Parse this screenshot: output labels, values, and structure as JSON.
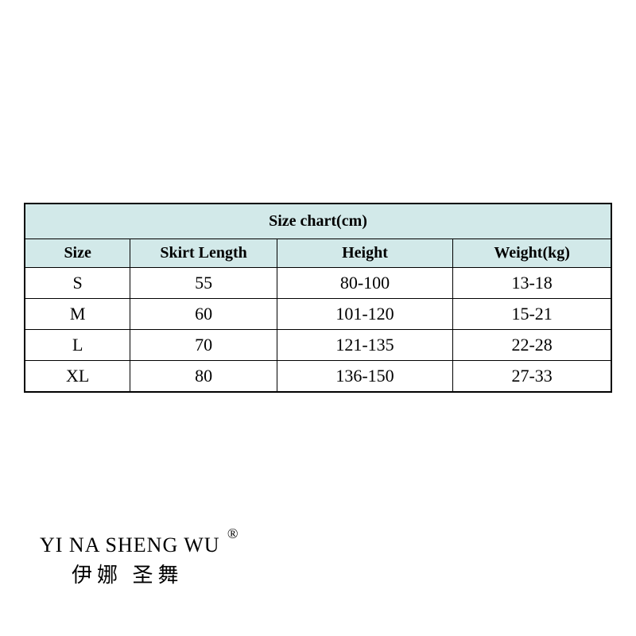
{
  "table": {
    "title": "Size chart(cm)",
    "columns": [
      "Size",
      "Skirt Length",
      "Height",
      "Weight(kg)"
    ],
    "rows": [
      [
        "S",
        "55",
        "80-100",
        "13-18"
      ],
      [
        "M",
        "60",
        "101-120",
        "15-21"
      ],
      [
        "L",
        "70",
        "121-135",
        "22-28"
      ],
      [
        "XL",
        "80",
        "136-150",
        "27-33"
      ]
    ],
    "header_bg": "#d2e9e9",
    "border_color": "#000000",
    "title_fontsize": 20,
    "header_fontsize": 20,
    "cell_fontsize": 22,
    "col_widths": [
      "18%",
      "25%",
      "30%",
      "27%"
    ]
  },
  "brand": {
    "english": "YI NA SHENG WU",
    "chinese": "伊娜 圣舞",
    "registered": "®"
  }
}
